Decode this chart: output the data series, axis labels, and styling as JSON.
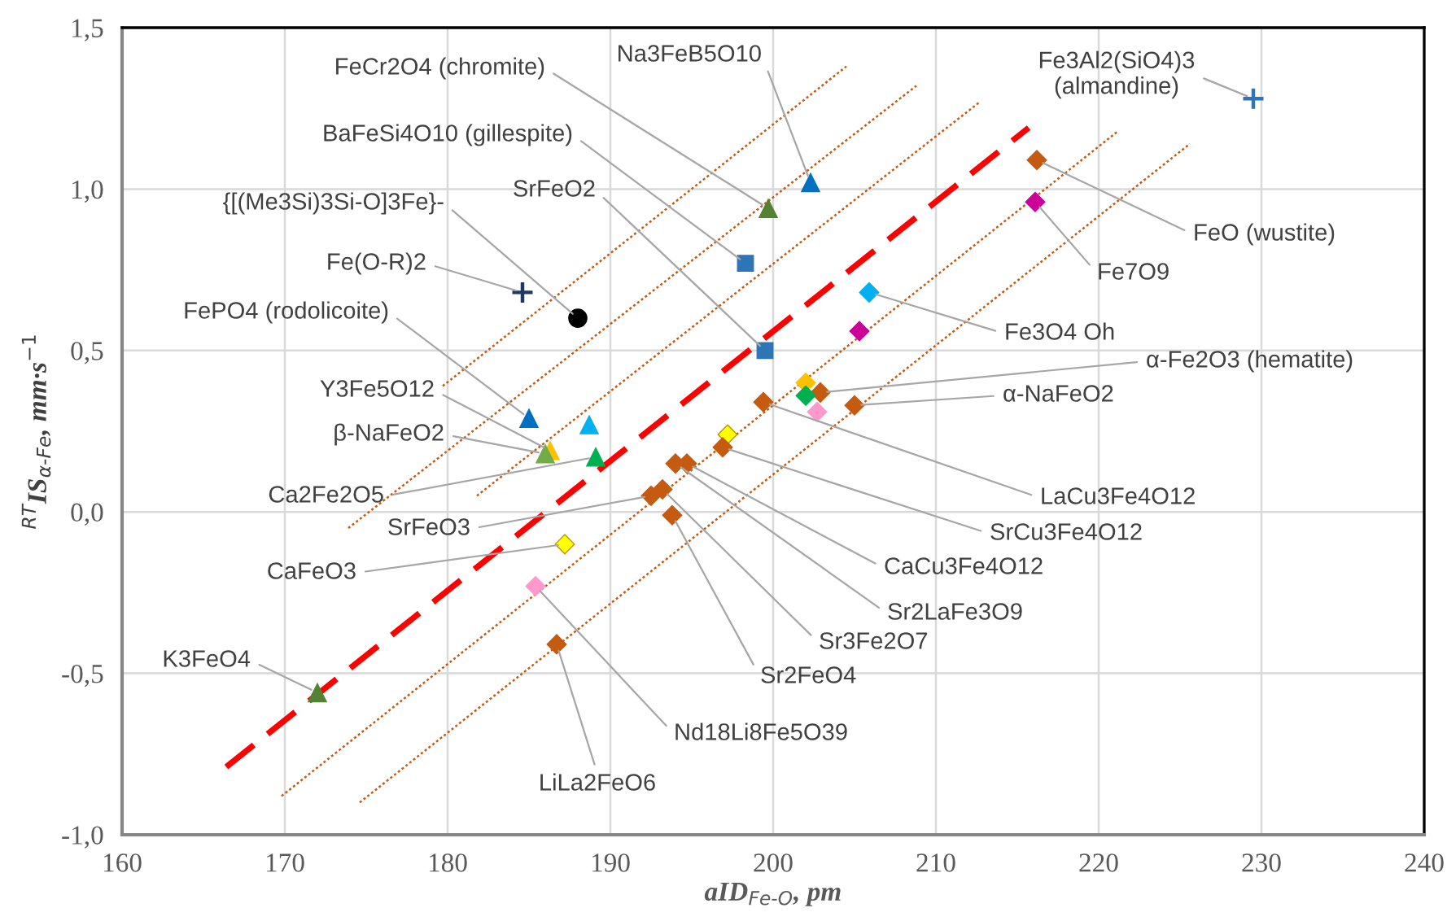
{
  "chart_data": {
    "type": "scatter",
    "xlabel": "aID$_{Fe‐O}$, pm",
    "ylabel": "$^{RT}$IS$_{α‐Fe}$, mm·s$^{−1}$",
    "xlim": [
      160,
      240
    ],
    "xticks": [
      160,
      170,
      180,
      190,
      200,
      210,
      220,
      230,
      240
    ],
    "ylim": [
      -1.0,
      1.5
    ],
    "yticks": [
      {
        "value": -1.0,
        "label": "-1,0"
      },
      {
        "value": -0.5,
        "label": "-0,5"
      },
      {
        "value": 0.0,
        "label": "0,0"
      },
      {
        "value": 0.5,
        "label": "0,5"
      },
      {
        "value": 1.0,
        "label": "1,0"
      },
      {
        "value": 1.5,
        "label": "1,5"
      }
    ],
    "grid": true,
    "legend": false,
    "series": [
      {
        "type": "line",
        "color": "#ff0000",
        "line_style": "dashed",
        "marker": "none",
        "x": [
          166.4,
          215.7
        ],
        "values": [
          -0.79,
          1.19
        ]
      },
      {
        "type": "line",
        "color": "#c55a11",
        "line_style": "dotted",
        "marker": "none",
        "x": [
          179.7,
          204.5
        ],
        "values": [
          0.39,
          1.38
        ]
      },
      {
        "type": "line",
        "color": "#c55a11",
        "line_style": "dotted",
        "marker": "none",
        "x": [
          173.9,
          208.8
        ],
        "values": [
          -0.05,
          1.32
        ]
      },
      {
        "type": "line",
        "color": "#c55a11",
        "line_style": "dotted",
        "marker": "none",
        "x": [
          181.8,
          212.7
        ],
        "values": [
          0.05,
          1.27
        ]
      },
      {
        "type": "line",
        "color": "#c55a11",
        "line_style": "dotted",
        "marker": "none",
        "x": [
          169.8,
          221.2
        ],
        "values": [
          -0.88,
          1.18
        ]
      },
      {
        "type": "line",
        "color": "#c55a11",
        "line_style": "dotted",
        "marker": "none",
        "x": [
          174.6,
          225.6
        ],
        "values": [
          -0.9,
          1.14
        ]
      },
      {
        "name": "Fe3Al2(SiO4)3\n(almandine)",
        "color": "#2e75b6",
        "marker": "cross",
        "x": [
          229.5
        ],
        "values": [
          1.28
        ]
      },
      {
        "name": "Na3FeB5O10",
        "color": "#0070c0",
        "marker": "triangle",
        "x": [
          202.3
        ],
        "values": [
          1.02
        ]
      },
      {
        "name": "FeCr2O4 (chromite)",
        "color": "#548235",
        "marker": "triangle",
        "x": [
          199.7
        ],
        "values": [
          0.94
        ]
      },
      {
        "name": "BaFeSi4O10 (gillespite)",
        "color": "#2e75b6",
        "marker": "square",
        "x": [
          198.3
        ],
        "values": [
          0.77
        ]
      },
      {
        "name": "SrFeO2",
        "color": "#2e75b6",
        "marker": "square",
        "x": [
          199.5
        ],
        "values": [
          0.5
        ]
      },
      {
        "name": "{[(Me3Si)3Si-O]3Fe}-",
        "color": "#000000",
        "marker": "circle",
        "x": [
          188.0
        ],
        "values": [
          0.6
        ]
      },
      {
        "name": "Fe(O-R)2",
        "color": "#1f3864",
        "marker": "cross",
        "x": [
          184.6
        ],
        "values": [
          0.68
        ]
      },
      {
        "name": "FePO4 (rodolicoite)",
        "color": "#0070c0",
        "marker": "triangle",
        "x": [
          185.0
        ],
        "values": [
          0.29
        ]
      },
      {
        "name": "Y3Fe5O12",
        "color": "#ffc000",
        "marker": "triangle",
        "x": [
          186.3
        ],
        "values": [
          0.19
        ]
      },
      {
        "name": "β-NaFeO2",
        "color": "#70ad47",
        "marker": "triangle",
        "x": [
          186.0
        ],
        "values": [
          0.18
        ]
      },
      {
        "color": "#00b0f0",
        "marker": "triangle",
        "x": [
          188.7
        ],
        "values": [
          0.27
        ]
      },
      {
        "name": "Ca2Fe2O5",
        "color": "#00b050",
        "marker": "triangle",
        "x": [
          189.1
        ],
        "values": [
          0.17
        ]
      },
      {
        "name": "K3FeO4",
        "color": "#548235",
        "marker": "triangle",
        "x": [
          172.0
        ],
        "values": [
          -0.56
        ]
      },
      {
        "name": "FeO (wustite)",
        "color": "#c55a11",
        "marker": "diamond",
        "x": [
          216.2
        ],
        "values": [
          1.09
        ]
      },
      {
        "name": "Fe7O9",
        "color": "#cc0099",
        "marker": "diamond",
        "x": [
          216.1
        ],
        "values": [
          0.96
        ]
      },
      {
        "name": "Fe3O4 Oh",
        "color": "#00b0f0",
        "marker": "diamond",
        "x": [
          205.9
        ],
        "values": [
          0.68
        ]
      },
      {
        "color": "#cc0099",
        "marker": "diamond",
        "x": [
          205.3
        ],
        "values": [
          0.56
        ]
      },
      {
        "name": "α-Fe2O3 (hematite)",
        "color": "#c55a11",
        "marker": "diamond",
        "x": [
          202.9
        ],
        "values": [
          0.37
        ]
      },
      {
        "name": "α-NaFeO2",
        "color": "#c55a11",
        "marker": "diamond",
        "x": [
          205.0
        ],
        "values": [
          0.33
        ]
      },
      {
        "color": "#ffc000",
        "marker": "diamond",
        "x": [
          202.0
        ],
        "values": [
          0.4
        ]
      },
      {
        "color": "#00b050",
        "marker": "diamond",
        "x": [
          202.0
        ],
        "values": [
          0.36
        ]
      },
      {
        "color": "#ff99cc",
        "marker": "diamond",
        "x": [
          202.7
        ],
        "values": [
          0.31
        ]
      },
      {
        "name": "LaCu3Fe4O12",
        "color": "#c55a11",
        "marker": "diamond",
        "x": [
          199.4
        ],
        "values": [
          0.34
        ]
      },
      {
        "color": "#ffff00",
        "marker": "diamond",
        "x": [
          197.2
        ],
        "values": [
          0.24
        ]
      },
      {
        "name": "SrCu3Fe4O12",
        "color": "#c55a11",
        "marker": "diamond",
        "x": [
          196.9
        ],
        "values": [
          0.2
        ]
      },
      {
        "name": "CaCu3Fe4O12",
        "color": "#c55a11",
        "marker": "diamond",
        "x": [
          194.7
        ],
        "values": [
          0.15
        ]
      },
      {
        "name": "Sr2LaFe3O9",
        "color": "#c55a11",
        "marker": "diamond",
        "x": [
          194.0
        ],
        "values": [
          0.15
        ]
      },
      {
        "name": "Sr3Fe2O7",
        "color": "#c55a11",
        "marker": "diamond",
        "x": [
          193.2
        ],
        "values": [
          0.07
        ]
      },
      {
        "name": "SrFeO3",
        "color": "#c55a11",
        "marker": "diamond",
        "x": [
          192.5
        ],
        "values": [
          0.05
        ]
      },
      {
        "name": "Sr2FeO4",
        "color": "#c55a11",
        "marker": "diamond",
        "x": [
          193.8
        ],
        "values": [
          -0.01
        ]
      },
      {
        "name": "CaFeO3",
        "color": "#ffff00",
        "marker": "diamond",
        "x": [
          187.2
        ],
        "values": [
          -0.1
        ]
      },
      {
        "name": "Nd18Li8Fe5O39",
        "color": "#ff99cc",
        "marker": "diamond",
        "x": [
          185.4
        ],
        "values": [
          -0.23
        ]
      },
      {
        "name": "LiLa2FeO6",
        "color": "#c55a11",
        "marker": "diamond",
        "x": [
          186.7
        ],
        "values": [
          -0.41
        ]
      }
    ]
  }
}
